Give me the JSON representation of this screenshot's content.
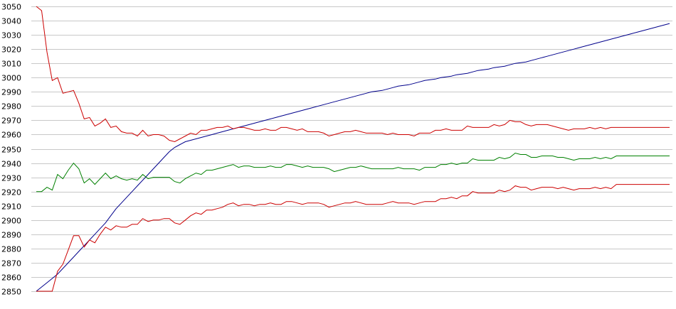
{
  "chart_data": {
    "type": "line",
    "title": "",
    "xlabel": "",
    "ylabel": "",
    "ylim": [
      2850,
      3050
    ],
    "ytick_step": 10,
    "yticks": [
      "3050",
      "3040",
      "3030",
      "3020",
      "3010",
      "3000",
      "2990",
      "2980",
      "2970",
      "2960",
      "2950",
      "2940",
      "2930",
      "2920",
      "2910",
      "2900",
      "2890",
      "2880",
      "2870",
      "2860",
      "2850"
    ],
    "grid": true,
    "legend": "none",
    "x_count": 120,
    "series": [
      {
        "color": "#00008b",
        "values": [
          2850,
          2853,
          2856,
          2859,
          2862,
          2866,
          2870,
          2874,
          2878,
          2882,
          2886,
          2890,
          2894,
          2898,
          2903,
          2908,
          2912,
          2916,
          2920,
          2924,
          2928,
          2932,
          2936,
          2940,
          2944,
          2948,
          2951,
          2953,
          2955,
          2956,
          2957,
          2958,
          2959,
          2960,
          2961,
          2962,
          2963,
          2964,
          2965,
          2966,
          2967,
          2968,
          2969,
          2970,
          2971,
          2972,
          2973,
          2974,
          2975,
          2976,
          2977,
          2978,
          2979,
          2980,
          2981,
          2982,
          2983,
          2984,
          2985,
          2986,
          2987,
          2988,
          2989,
          2990,
          2990.5,
          2991,
          2992,
          2993,
          2994,
          2994.5,
          2995,
          2996,
          2997,
          2998,
          2998.5,
          2999,
          3000,
          3000.5,
          3001,
          3002,
          3002.5,
          3003,
          3004,
          3005,
          3005.5,
          3006,
          3007,
          3007.5,
          3008,
          3009,
          3010,
          3010.5,
          3011,
          3012,
          3013,
          3014,
          3015,
          3016,
          3017,
          3018,
          3019,
          3020,
          3021,
          3022,
          3023,
          3024,
          3025,
          3026,
          3027,
          3028,
          3029,
          3030,
          3031,
          3032,
          3033,
          3034,
          3035,
          3036,
          3037,
          3038
        ]
      },
      {
        "color": "#cc0000",
        "values": [
          3050,
          3047,
          3018,
          2998,
          3000,
          2989,
          2990,
          2991,
          2982,
          2971,
          2972,
          2966,
          2968,
          2971,
          2965,
          2966,
          2962,
          2961,
          2961,
          2959,
          2963,
          2959,
          2960,
          2960,
          2959,
          2956,
          2955,
          2957,
          2959,
          2961,
          2960,
          2963,
          2963,
          2964,
          2965,
          2965,
          2966,
          2964,
          2965,
          2965,
          2964,
          2963,
          2963,
          2964,
          2963,
          2963,
          2965,
          2965,
          2964,
          2963,
          2964,
          2962,
          2962,
          2962,
          2961,
          2959,
          2960,
          2961,
          2962,
          2962,
          2963,
          2962,
          2961,
          2961,
          2961,
          2961,
          2960,
          2961,
          2960,
          2960,
          2960,
          2959,
          2961,
          2961,
          2961,
          2963,
          2963,
          2964,
          2963,
          2963,
          2963,
          2966,
          2965,
          2965,
          2965,
          2965,
          2967,
          2966,
          2967,
          2970,
          2969,
          2969,
          2967,
          2966,
          2967,
          2967,
          2967,
          2966,
          2965,
          2964,
          2963,
          2964,
          2964,
          2964,
          2965,
          2964,
          2965,
          2964,
          2965,
          2965,
          2965,
          2965,
          2965,
          2965,
          2965,
          2965,
          2965,
          2965,
          2965,
          2965
        ]
      },
      {
        "color": "#008000",
        "values": [
          2920,
          2920,
          2923,
          2921,
          2932,
          2929,
          2935,
          2940,
          2936,
          2926,
          2929,
          2925,
          2929,
          2933,
          2929,
          2931,
          2929,
          2928,
          2929,
          2928,
          2932,
          2929,
          2930,
          2930,
          2930,
          2930,
          2927,
          2926,
          2929,
          2931,
          2933,
          2932,
          2935,
          2935,
          2936,
          2937,
          2938,
          2939,
          2937,
          2938,
          2938,
          2937,
          2937,
          2937,
          2938,
          2937,
          2937,
          2939,
          2939,
          2938,
          2937,
          2938,
          2937,
          2937,
          2937,
          2936,
          2934,
          2935,
          2936,
          2937,
          2937,
          2938,
          2937,
          2936,
          2936,
          2936,
          2936,
          2936,
          2937,
          2936,
          2936,
          2936,
          2935,
          2937,
          2937,
          2937,
          2939,
          2939,
          2940,
          2939,
          2940,
          2940,
          2943,
          2942,
          2942,
          2942,
          2942,
          2944,
          2943,
          2944,
          2947,
          2946,
          2946,
          2944,
          2944,
          2945,
          2945,
          2945,
          2944,
          2944,
          2943,
          2942,
          2943,
          2943,
          2943,
          2944,
          2943,
          2944,
          2943,
          2945,
          2945,
          2945,
          2945,
          2945,
          2945,
          2945,
          2945,
          2945,
          2945,
          2945
        ]
      },
      {
        "color": "#cc0000",
        "values": [
          2850,
          2850,
          2850,
          2850,
          2864,
          2869,
          2879,
          2889,
          2889,
          2881,
          2886,
          2884,
          2890,
          2895,
          2893,
          2896,
          2895,
          2895,
          2897,
          2897,
          2901,
          2899,
          2900,
          2900,
          2901,
          2901,
          2898,
          2897,
          2900,
          2903,
          2905,
          2904,
          2907,
          2907,
          2908,
          2909,
          2911,
          2912,
          2910,
          2911,
          2911,
          2910,
          2911,
          2911,
          2912,
          2911,
          2911,
          2913,
          2913,
          2912,
          2911,
          2912,
          2912,
          2912,
          2911,
          2909,
          2910,
          2911,
          2912,
          2912,
          2913,
          2912,
          2911,
          2911,
          2911,
          2911,
          2912,
          2913,
          2912,
          2912,
          2912,
          2911,
          2912,
          2913,
          2913,
          2913,
          2915,
          2915,
          2916,
          2915,
          2917,
          2917,
          2920,
          2919,
          2919,
          2919,
          2919,
          2921,
          2920,
          2921,
          2924,
          2923,
          2923,
          2921,
          2922,
          2923,
          2923,
          2923,
          2922,
          2923,
          2922,
          2921,
          2922,
          2922,
          2922,
          2923,
          2922,
          2923,
          2922,
          2925,
          2925,
          2925,
          2925,
          2925,
          2925,
          2925,
          2925,
          2925,
          2925,
          2925
        ]
      }
    ]
  }
}
